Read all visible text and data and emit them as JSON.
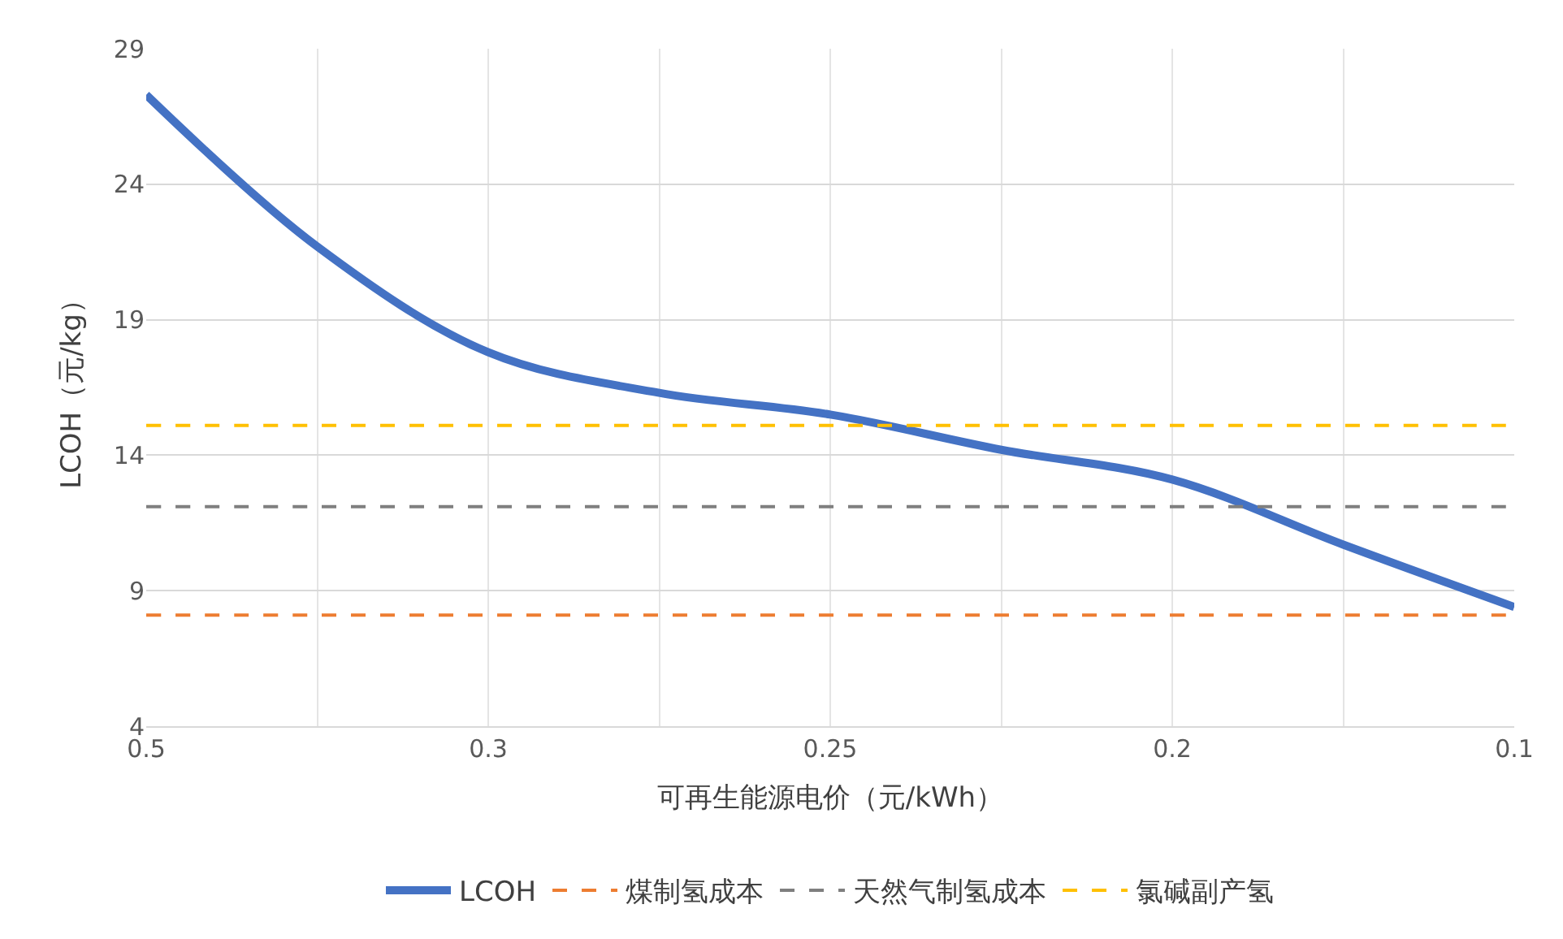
{
  "chart_data": {
    "type": "line",
    "xlabel": "可再生能源电价（元/kWh）",
    "ylabel": "LCOH（元/kg）",
    "categories": [
      "0.5",
      null,
      "0.3",
      null,
      "0.25",
      null,
      "0.2",
      null,
      "0.1"
    ],
    "series": [
      {
        "name": "LCOH",
        "color": "#4472c4",
        "line_style": "solid",
        "values": [
          27.3,
          21.7,
          17.8,
          16.3,
          15.5,
          14.2,
          13.1,
          10.7,
          8.4
        ]
      },
      {
        "name": "煤制氢成本",
        "color": "#ed7d31",
        "line_style": "dashed",
        "values": [
          8.1,
          8.1,
          8.1,
          8.1,
          8.1,
          8.1,
          8.1,
          8.1,
          8.1
        ]
      },
      {
        "name": "天然气制氢成本",
        "color": "#7f7f7f",
        "line_style": "dashed",
        "values": [
          12.1,
          12.1,
          12.1,
          12.1,
          12.1,
          12.1,
          12.1,
          12.1,
          12.1
        ]
      },
      {
        "name": "氯碱副产氢",
        "color": "#ffc000",
        "line_style": "dashed",
        "values": [
          15.1,
          15.1,
          15.1,
          15.1,
          15.1,
          15.1,
          15.1,
          15.1,
          15.1
        ]
      }
    ],
    "ylim": [
      4,
      29
    ],
    "yticks": [
      4,
      9,
      14,
      19,
      24,
      29
    ],
    "grid": true,
    "legend": "bottom",
    "marker": "none"
  }
}
